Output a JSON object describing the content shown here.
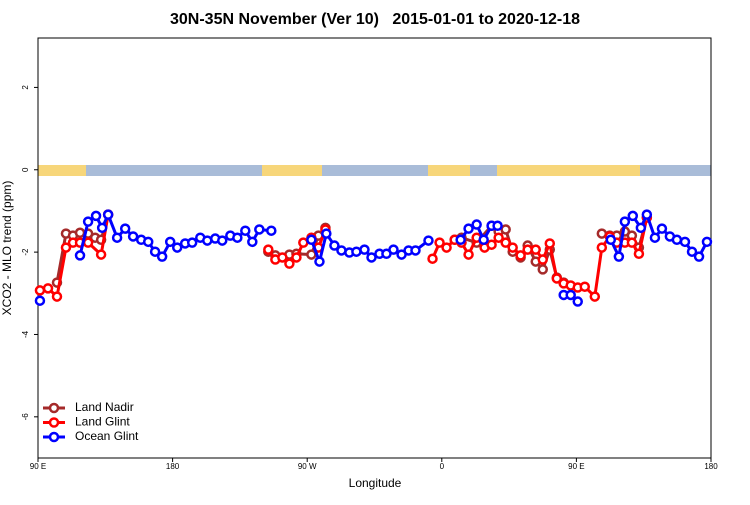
{
  "chart_data": {
    "type": "line",
    "title": "30N-35N November (Ver 10)   2015-01-01 to 2020-12-18",
    "x_label": "Longitude",
    "y_label": "XCO2 - MLO trend (ppm)",
    "xlim": [
      90,
      540
    ],
    "xticks": [
      {
        "value": 90,
        "label": "90 E"
      },
      {
        "value": 180,
        "label": "180"
      },
      {
        "value": 270,
        "label": "90 W"
      },
      {
        "value": 360,
        "label": "0"
      },
      {
        "value": 450,
        "label": "90 E"
      },
      {
        "value": 540,
        "label": "180"
      }
    ],
    "ylim": [
      -7,
      3.2
    ],
    "yticks": [
      -6,
      -4,
      -2,
      0,
      2
    ],
    "legend": "bottom-left",
    "series": [
      {
        "name": "Land Nadir",
        "color": "#a52a2a",
        "x": [
          102.7,
          108.7,
          113.4,
          118.1,
          123.5,
          128.2,
          132.2,
          136.9,
          244.0,
          248.7,
          258.1,
          262.8,
          272.8,
          277.5,
          282.2,
          368.6,
          373.2,
          383.3,
          393.3,
          398.0,
          402.7,
          407.4,
          412.7,
          417.4,
          422.8,
          427.5,
          432.2,
          436.9,
          441.5,
          467.0,
          472.3,
          477.0,
          482.4,
          487.1,
          491.8,
          497.1
        ],
        "values": [
          -2.74,
          -1.55,
          -1.6,
          -1.53,
          -1.55,
          -1.65,
          -1.7,
          -1.09,
          -1.99,
          -2.08,
          -2.06,
          -2.04,
          -2.06,
          -1.6,
          -1.41,
          -1.7,
          -1.65,
          -1.77,
          -1.36,
          -1.5,
          -1.45,
          -1.99,
          -2.13,
          -1.84,
          -2.23,
          -2.42,
          -1.94,
          -2.62,
          -2.74,
          -1.55,
          -1.6,
          -1.6,
          -1.5,
          -1.6,
          -1.89,
          -1.16
        ]
      },
      {
        "name": "Land Glint",
        "color": "#ff0000",
        "x": [
          91.3,
          96.7,
          102.7,
          108.7,
          113.4,
          118.1,
          123.5,
          132.2,
          136.9,
          244.0,
          248.7,
          253.4,
          258.1,
          262.8,
          267.4,
          272.8,
          277.5,
          282.2,
          353.8,
          358.5,
          363.2,
          368.6,
          373.2,
          377.9,
          383.3,
          388.6,
          393.3,
          398.0,
          402.7,
          407.4,
          412.7,
          417.4,
          422.8,
          427.5,
          432.2,
          436.9,
          441.5,
          446.2,
          450.9,
          455.6,
          462.3,
          467.0,
          472.3,
          477.0,
          482.4,
          487.1,
          491.8,
          497.1
        ],
        "values": [
          -2.93,
          -2.88,
          -3.08,
          -1.89,
          -1.77,
          -1.77,
          -1.77,
          -2.06,
          -1.09,
          -1.94,
          -2.18,
          -2.13,
          -2.28,
          -2.13,
          -1.77,
          -1.65,
          -1.89,
          -1.45,
          -2.16,
          -1.77,
          -1.89,
          -1.7,
          -1.77,
          -2.06,
          -1.65,
          -1.89,
          -1.82,
          -1.65,
          -1.77,
          -1.89,
          -2.08,
          -1.94,
          -1.94,
          -2.18,
          -1.79,
          -2.64,
          -2.76,
          -2.81,
          -2.86,
          -2.84,
          -3.08,
          -1.89,
          -1.62,
          -1.77,
          -1.77,
          -1.77,
          -2.04,
          -1.16
        ]
      },
      {
        "name": "Ocean Glint",
        "color": "#0000ff",
        "x": [
          91.3,
          118.1,
          123.5,
          128.8,
          132.9,
          136.9,
          142.9,
          148.3,
          153.6,
          159.0,
          163.7,
          168.3,
          173.0,
          178.4,
          183.1,
          188.4,
          193.1,
          198.5,
          203.2,
          208.5,
          213.2,
          218.6,
          223.3,
          228.6,
          233.3,
          238.0,
          246.0,
          272.8,
          278.2,
          282.8,
          288.2,
          292.9,
          298.2,
          302.9,
          308.3,
          313.0,
          318.3,
          323.0,
          327.7,
          333.1,
          337.8,
          342.4,
          351.1,
          372.6,
          377.9,
          383.3,
          388.0,
          393.3,
          397.3,
          441.5,
          446.2,
          450.9,
          473.0,
          478.4,
          482.4,
          487.7,
          493.1,
          497.1,
          502.5,
          507.2,
          512.5,
          517.2,
          522.6,
          527.3,
          532.0,
          537.3
        ],
        "values": [
          -3.18,
          -2.08,
          -1.26,
          -1.12,
          -1.41,
          -1.09,
          -1.65,
          -1.43,
          -1.62,
          -1.7,
          -1.75,
          -1.99,
          -2.11,
          -1.75,
          -1.89,
          -1.79,
          -1.77,
          -1.65,
          -1.72,
          -1.67,
          -1.72,
          -1.6,
          -1.65,
          -1.48,
          -1.75,
          -1.45,
          -1.48,
          -1.7,
          -2.23,
          -1.55,
          -1.84,
          -1.96,
          -2.01,
          -1.99,
          -1.94,
          -2.13,
          -2.04,
          -2.04,
          -1.94,
          -2.06,
          -1.96,
          -1.96,
          -1.72,
          -1.7,
          -1.43,
          -1.33,
          -1.7,
          -1.36,
          -1.36,
          -3.04,
          -3.04,
          -3.2,
          -1.7,
          -2.11,
          -1.26,
          -1.12,
          -1.41,
          -1.09,
          -1.65,
          -1.43,
          -1.62,
          -1.7,
          -1.75,
          -1.99,
          -2.11,
          -1.75
        ]
      }
    ]
  }
}
